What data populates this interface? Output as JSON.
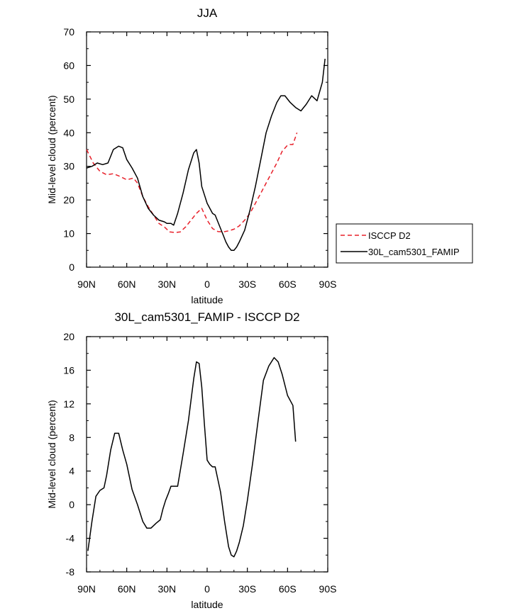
{
  "chart_data": [
    {
      "type": "line",
      "title": "JJA",
      "xlabel": "latitude",
      "ylabel": "Mid-level cloud (percent)",
      "xlim": [
        90,
        -90
      ],
      "ylim": [
        0,
        70
      ],
      "xticks": [
        90,
        60,
        30,
        0,
        -30,
        -60,
        -90
      ],
      "xticklabels": [
        "90N",
        "60N",
        "30N",
        "0",
        "30S",
        "60S",
        "90S"
      ],
      "yticks": [
        0,
        10,
        20,
        30,
        40,
        50,
        60,
        70
      ],
      "yticklabels": [
        "0",
        "10",
        "20",
        "30",
        "40",
        "50",
        "60",
        "70"
      ],
      "legend_position": "right",
      "series": [
        {
          "name": "ISCCP D2",
          "color": "#e8202a",
          "dash": "dashed",
          "x": [
            90,
            85,
            80,
            75,
            70,
            65,
            60,
            55,
            52,
            48,
            44,
            40,
            36,
            32,
            28,
            24,
            20,
            16,
            12,
            8,
            4,
            0,
            -4,
            -8,
            -12,
            -16,
            -20,
            -24,
            -28,
            -32,
            -36,
            -40,
            -44,
            -48,
            -52,
            -56,
            -60,
            -62,
            -64,
            -67
          ],
          "y": [
            35,
            31,
            28.5,
            27.5,
            27.8,
            27,
            26,
            26.5,
            25,
            21,
            18,
            15.5,
            13,
            12,
            10.5,
            10.3,
            10.5,
            12,
            14,
            16,
            17.5,
            14,
            11.5,
            10.6,
            10.5,
            10.8,
            11.3,
            12.3,
            14,
            16,
            19,
            22,
            25,
            28,
            31,
            34.5,
            36.3,
            36.5,
            36.5,
            40
          ]
        },
        {
          "name": "30L_cam5301_FAMIP",
          "color": "#000000",
          "dash": "solid",
          "x": [
            90,
            86,
            82,
            78,
            74,
            70,
            66,
            63,
            60,
            56,
            52,
            48,
            44,
            40,
            36,
            32,
            30,
            27,
            25,
            22,
            18,
            14,
            10,
            8,
            6,
            4,
            0,
            -4,
            -6,
            -8,
            -12,
            -14,
            -16,
            -18,
            -20,
            -22,
            -24,
            -28,
            -32,
            -36,
            -40,
            -44,
            -48,
            -52,
            -55,
            -58,
            -62,
            -66,
            -70,
            -74,
            -78,
            -82,
            -86,
            -88
          ],
          "y": [
            29.5,
            30,
            31,
            30.5,
            31,
            35,
            36,
            35.5,
            32,
            29.5,
            26.5,
            21,
            17.5,
            15.5,
            14,
            13.5,
            13,
            13,
            12.5,
            16,
            22,
            29,
            34,
            35,
            31,
            24,
            19,
            16,
            15.5,
            13.5,
            9.5,
            7.5,
            6,
            5,
            5,
            6,
            7.5,
            11,
            17,
            24,
            32,
            40,
            45,
            49,
            51,
            51,
            49,
            47.5,
            46.5,
            48.5,
            51,
            49.5,
            55,
            62
          ]
        }
      ]
    },
    {
      "type": "line",
      "title": "30L_cam5301_FAMIP - ISCCP D2",
      "xlabel": "latitude",
      "ylabel": "Mid-level cloud (percent)",
      "xlim": [
        90,
        -90
      ],
      "ylim": [
        -8,
        20
      ],
      "xticks": [
        90,
        60,
        30,
        0,
        -30,
        -60,
        -90
      ],
      "xticklabels": [
        "90N",
        "60N",
        "30N",
        "0",
        "30S",
        "60S",
        "90S"
      ],
      "yticks": [
        -8,
        -4,
        0,
        4,
        8,
        12,
        16,
        20
      ],
      "yticklabels": [
        "-8",
        "-4",
        "0",
        "4",
        "8",
        "12",
        "16",
        "20"
      ],
      "series": [
        {
          "color": "#000000",
          "dash": "solid",
          "x": [
            89,
            86,
            83,
            80,
            77,
            75,
            72,
            69,
            66,
            63,
            60,
            56,
            52,
            48,
            45,
            42,
            38,
            35,
            33,
            31,
            29,
            27,
            25,
            22,
            18,
            14,
            10,
            8,
            6,
            4,
            2,
            0,
            -2,
            -4,
            -6,
            -8,
            -10,
            -13,
            -16,
            -18,
            -20,
            -22,
            -24,
            -27,
            -30,
            -34,
            -38,
            -42,
            -46,
            -50,
            -53,
            -56,
            -60,
            -64,
            -66
          ],
          "y": [
            -5.5,
            -2,
            1,
            1.7,
            2.0,
            3.5,
            6.5,
            8.5,
            8.5,
            6.5,
            4.8,
            1.8,
            0,
            -2,
            -2.8,
            -2.8,
            -2.2,
            -1.8,
            -0.5,
            0.5,
            1.3,
            2.2,
            2.2,
            2.2,
            6,
            10,
            15,
            17,
            16.8,
            14,
            9.5,
            5.3,
            4.8,
            4.5,
            4.5,
            3,
            1.5,
            -2,
            -5,
            -6,
            -6.2,
            -5.5,
            -4.5,
            -2.5,
            0.5,
            5,
            10,
            14.8,
            16.5,
            17.5,
            17,
            15.5,
            13,
            11.8,
            7.5
          ]
        }
      ]
    }
  ]
}
